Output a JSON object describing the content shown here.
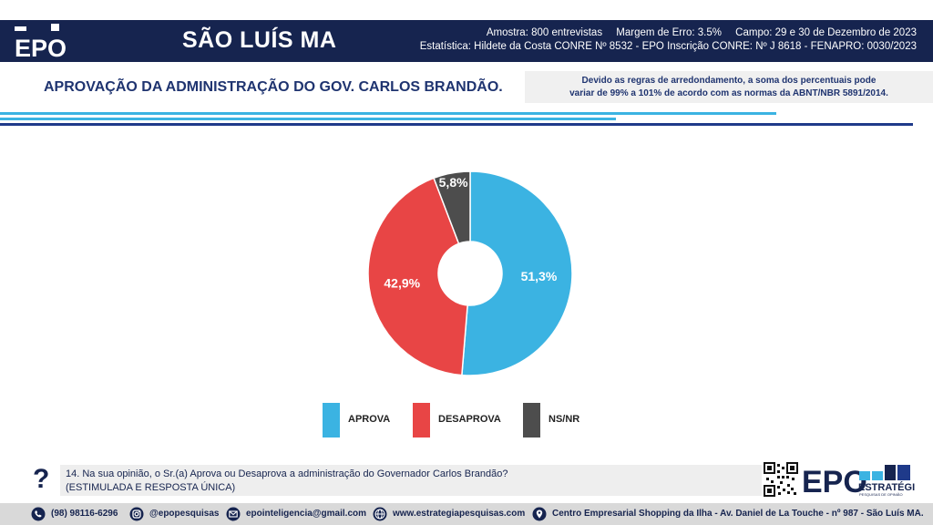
{
  "header": {
    "logo_text": "EPO",
    "city": "SÃO LUÍS MA",
    "sample": "Amostra: 800 entrevistas",
    "margin": "Margem de Erro: 3.5%",
    "field": "Campo: 29 e 30 de Dezembro de 2023",
    "statistics": "Estatística: Hildete da Costa CONRE Nº 8532  - EPO Inscrição CONRE: Nº J 8618 - FENAPRO: 0030/2023"
  },
  "title": "APROVAÇÃO DA ADMINISTRAÇÃO DO GOV. CARLOS BRANDÃO.",
  "note": {
    "line1": "Devido as regras de arredondamento, a soma dos percentuais pode",
    "line2": "variar de 99% a 101% de acordo com as normas da ABNT/NBR 5891/2014."
  },
  "chart_data": {
    "type": "pie",
    "categories": [
      "APROVA",
      "DESAPROVA",
      "NS/NR"
    ],
    "values": [
      51.3,
      42.9,
      5.8
    ],
    "value_labels": [
      "51,3%",
      "42,9%",
      "5,8%"
    ],
    "colors": [
      "#3bb3e2",
      "#e84545",
      "#4d4d4d"
    ],
    "legend": "bottom",
    "title": "",
    "xlabel": "",
    "ylabel": ""
  },
  "question": {
    "line1": "14. Na sua opinião, o Sr.(a) Aprova ou Desaprova a administração do Governador Carlos Brandão?",
    "line2": "(ESTIMULADA E RESPOSTA ÚNICA)"
  },
  "brand": {
    "name": "EPO",
    "sub": "ESTRATÉGIA",
    "tagline": "PESQUISAS DE OPINIÃO"
  },
  "footer": {
    "phone": "(98) 98116-6296",
    "instagram": "@epopesquisas",
    "email": "epointeligencia@gmail.com",
    "website": "www.estrategiapesquisas.com",
    "address": "Centro Empresarial Shopping da Ilha - Av. Daniel de La Touche - nº 987 - São Luís MA."
  },
  "icons": {
    "phone": "whatsapp-icon",
    "instagram": "instagram-icon",
    "email": "email-icon",
    "website": "globe-icon",
    "address": "location-pin-icon"
  }
}
